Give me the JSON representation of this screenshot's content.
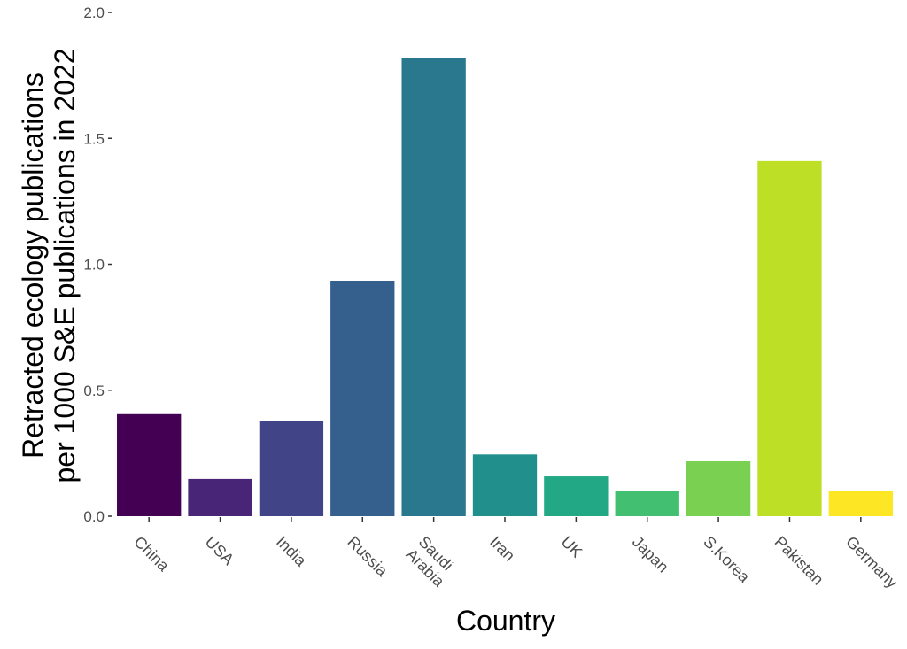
{
  "chart_data": {
    "type": "bar",
    "title": "",
    "xlabel": "Country",
    "ylabel_lines": [
      "Retracted ecology publications",
      "per 1000 S&E publications in 2022"
    ],
    "ylim": [
      0,
      2.0
    ],
    "yticks": [
      "0.0",
      "0.5",
      "1.0",
      "1.5",
      "2.0"
    ],
    "grid": false,
    "categories": [
      [
        "China"
      ],
      [
        "USA"
      ],
      [
        "India"
      ],
      [
        "Russia"
      ],
      [
        "Saudi",
        "Arabia"
      ],
      [
        "Iran"
      ],
      [
        "UK"
      ],
      [
        "Japan"
      ],
      [
        "S.Korea"
      ],
      [
        "Pakistan"
      ],
      [
        "Germany"
      ]
    ],
    "values": [
      0.405,
      0.148,
      0.378,
      0.935,
      1.82,
      0.245,
      0.158,
      0.102,
      0.218,
      1.41,
      0.102
    ],
    "colors": [
      "#440154",
      "#482576",
      "#414487",
      "#35608d",
      "#2a788e",
      "#21908c",
      "#22a884",
      "#43bf71",
      "#7ad151",
      "#bddf26",
      "#fde725"
    ]
  }
}
